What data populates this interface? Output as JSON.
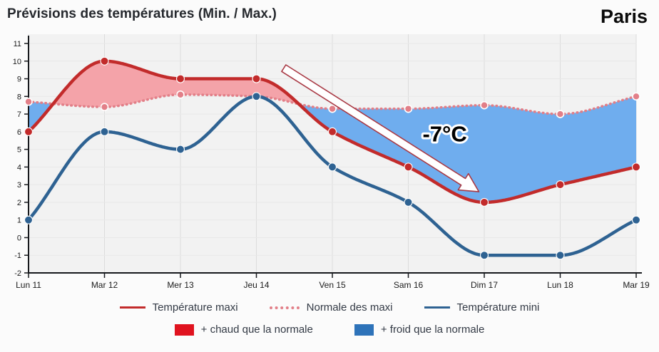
{
  "header": {
    "title": "Prévisions des températures (Min. / Max.)",
    "city": "Paris"
  },
  "chart_data": {
    "type": "line",
    "title": "Prévisions des températures (Min. / Max.)",
    "categories": [
      "Lun 11",
      "Mar 12",
      "Mer 13",
      "Jeu 14",
      "Ven 15",
      "Sam 16",
      "Dim 17",
      "Lun 18",
      "Mar 19"
    ],
    "series": [
      {
        "name": "Température maxi",
        "color": "#c22b2b",
        "line_style": "solid",
        "values": [
          6,
          10,
          9,
          9,
          6,
          4,
          2,
          3,
          4
        ]
      },
      {
        "name": "Normale des maxi",
        "color": "#e27f88",
        "line_style": "dotted",
        "values": [
          7.7,
          7.4,
          8.1,
          8,
          7.3,
          7.3,
          7.5,
          7,
          8
        ]
      },
      {
        "name": "Température mini",
        "color": "#2e6292",
        "line_style": "solid",
        "values": [
          1,
          6,
          5,
          8,
          4,
          2,
          -1,
          -1,
          1
        ]
      }
    ],
    "areas": [
      {
        "name": "+ chaud que la normale",
        "fill_color": "#f4a3a9",
        "legend_color": "#e0131f",
        "rule": "maxi_above_normale"
      },
      {
        "name": "+ froid que la normale",
        "fill_color": "#6fadee",
        "legend_color": "#2e73b9",
        "rule": "maxi_below_normale"
      }
    ],
    "annotation": {
      "text": "-7°C",
      "arrow_from": {
        "x": 3.36,
        "y": 9.6
      },
      "arrow_to": {
        "x": 5.93,
        "y": 2.6
      },
      "label_pos": {
        "x": 5.48,
        "y": 5.45
      }
    },
    "ylim": [
      -2,
      11
    ],
    "ytick_step": 1,
    "grid": true,
    "legend_position": "bottom"
  }
}
